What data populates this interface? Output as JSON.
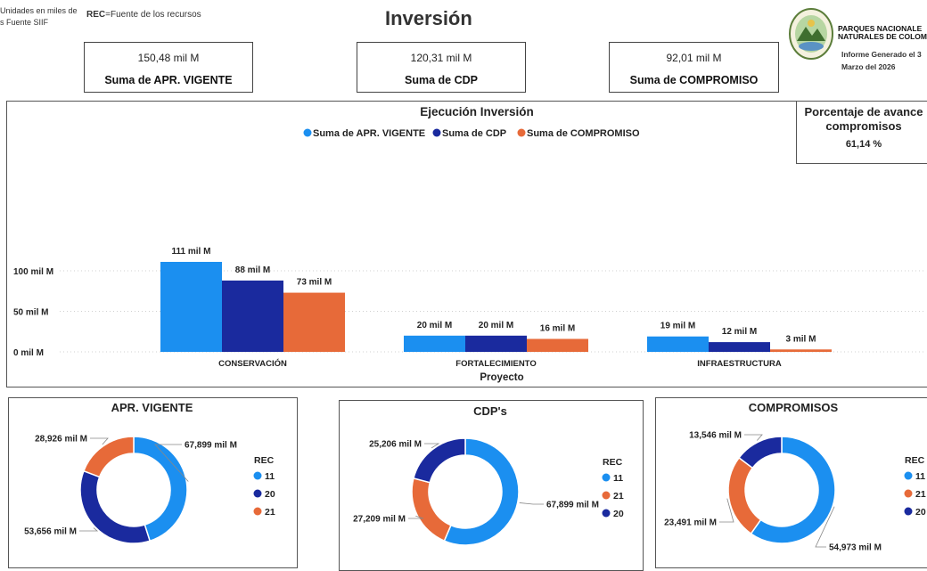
{
  "header": {
    "note_line1": "Unidades en miles de",
    "note_line2": "s Fuente SIIF",
    "rec_key": "REC",
    "rec_text": "=Fuente de los recursos",
    "title": "Inversión",
    "org_line1": "PARQUES NACIONALE",
    "org_line2": "NATURALES DE COLOMBI",
    "report_line1": "Informe Generado el 3",
    "report_line2": "Marzo del 2026"
  },
  "cards": [
    {
      "value": "150,48 mil M",
      "label": "Suma de APR. VIGENTE"
    },
    {
      "value": "120,31 mil M",
      "label": "Suma de CDP"
    },
    {
      "value": "92,01 mil M",
      "label": "Suma de COMPROMISO"
    }
  ],
  "percent_box": {
    "title_line1": "Porcentaje de avance",
    "title_line2": "compromisos",
    "value": "61,14 %"
  },
  "colors": {
    "apr": "#1b8ff0",
    "cdp": "#1a2a9e",
    "comp": "#e76a39"
  },
  "chart_data": [
    {
      "type": "bar",
      "title": "Ejecución Inversión",
      "xlabel": "Proyecto",
      "categories": [
        "CONSERVACIÓN",
        "FORTALECIMIENTO",
        "INFRAESTRUCTURA"
      ],
      "series": [
        {
          "name": "Suma de APR. VIGENTE",
          "values": [
            111,
            20,
            19
          ],
          "labels": [
            "111 mil M",
            "20 mil M",
            "19 mil M"
          ]
        },
        {
          "name": "Suma de CDP",
          "values": [
            88,
            20,
            12
          ],
          "labels": [
            "88 mil M",
            "20 mil M",
            "12 mil M"
          ]
        },
        {
          "name": "Suma de COMPROMISO",
          "values": [
            73,
            16,
            3
          ],
          "labels": [
            "73 mil M",
            "16 mil M",
            "3 mil M"
          ]
        }
      ],
      "yticks": [
        "0 mil M",
        "50 mil M",
        "100 mil M"
      ],
      "ytick_values": [
        0,
        50,
        100
      ],
      "ylim": [
        0,
        120
      ],
      "legend": "top-center",
      "grid": true
    },
    {
      "type": "pie",
      "title": "APR. VIGENTE",
      "legend_title": "REC",
      "legend": [
        "11",
        "20",
        "21"
      ],
      "slices": [
        {
          "name": "11",
          "value": 67899,
          "label": "67,899 mil M"
        },
        {
          "name": "20",
          "value": 53656,
          "label": "53,656 mil M"
        },
        {
          "name": "21",
          "value": 28926,
          "label": "28,926 mil M"
        }
      ]
    },
    {
      "type": "pie",
      "title": "CDP's",
      "legend_title": "REC",
      "legend": [
        "11",
        "21",
        "20"
      ],
      "slices": [
        {
          "name": "11",
          "value": 67899,
          "label": "67,899 mil M"
        },
        {
          "name": "21",
          "value": 27209,
          "label": "27,209 mil M"
        },
        {
          "name": "20",
          "value": 25206,
          "label": "25,206 mil M"
        }
      ]
    },
    {
      "type": "pie",
      "title": "COMPROMISOS",
      "legend_title": "REC",
      "legend": [
        "11",
        "21",
        "20"
      ],
      "slices": [
        {
          "name": "11",
          "value": 54973,
          "label": "54,973 mil M"
        },
        {
          "name": "21",
          "value": 23491,
          "label": "23,491 mil M"
        },
        {
          "name": "20",
          "value": 13546,
          "label": "13,546 mil M"
        }
      ]
    }
  ]
}
